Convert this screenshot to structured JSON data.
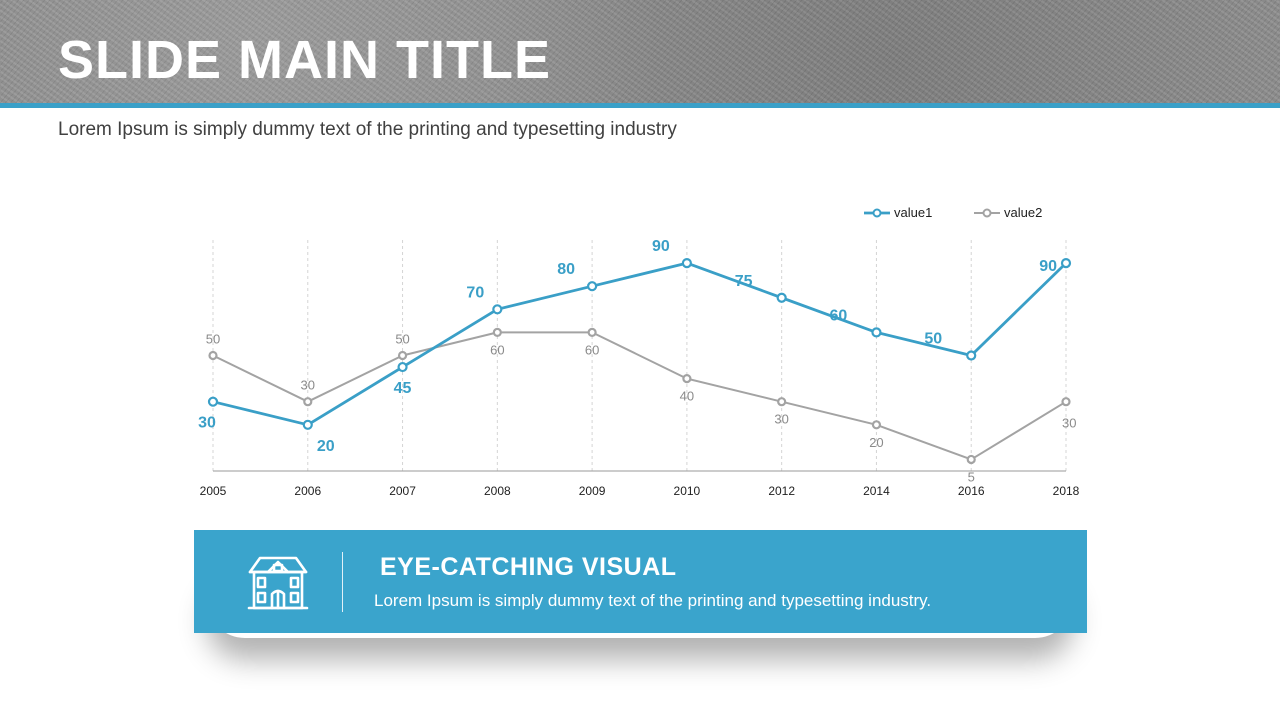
{
  "header": {
    "title": "SLIDE MAIN TITLE",
    "subtitle": "Lorem Ipsum is simply dummy text of the printing and typesetting industry"
  },
  "colors": {
    "accent": "#3aa0c8",
    "value1": "#3a9fc7",
    "value2": "#a3a3a3",
    "banner": "#3aa4cc"
  },
  "chart_data": {
    "type": "line",
    "categories": [
      "2005",
      "2006",
      "2007",
      "2008",
      "2009",
      "2010",
      "2012",
      "2014",
      "2016",
      "2018"
    ],
    "series": [
      {
        "name": "value1",
        "values": [
          30,
          20,
          45,
          70,
          80,
          90,
          75,
          60,
          50,
          90
        ]
      },
      {
        "name": "value2",
        "values": [
          50,
          30,
          50,
          60,
          60,
          40,
          30,
          20,
          5,
          30
        ]
      }
    ],
    "ylim": [
      0,
      100
    ],
    "legend": "top-right",
    "grid": "vertical dashed"
  },
  "banner": {
    "icon": "house-icon",
    "title": "EYE-CATCHING VISUAL",
    "text": "Lorem Ipsum is simply dummy text of the printing and typesetting industry."
  }
}
